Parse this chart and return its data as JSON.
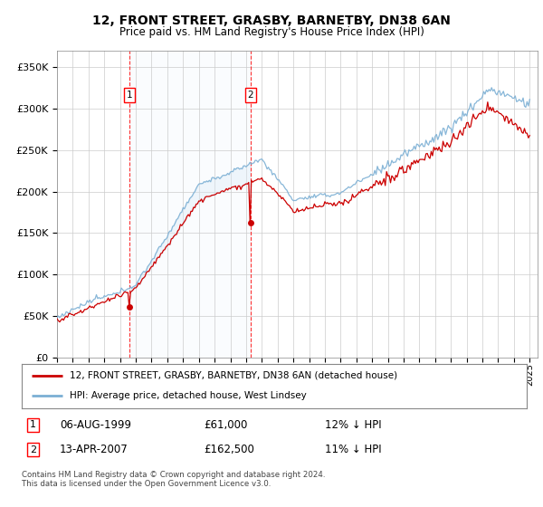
{
  "title": "12, FRONT STREET, GRASBY, BARNETBY, DN38 6AN",
  "subtitle": "Price paid vs. HM Land Registry's House Price Index (HPI)",
  "legend_line1": "12, FRONT STREET, GRASBY, BARNETBY, DN38 6AN (detached house)",
  "legend_line2": "HPI: Average price, detached house, West Lindsey",
  "footnote": "Contains HM Land Registry data © Crown copyright and database right 2024.\nThis data is licensed under the Open Government Licence v3.0.",
  "sale1_date_num": 1999.6,
  "sale1_price": 61000,
  "sale1_table": "06-AUG-1999",
  "sale1_amount": "£61,000",
  "sale1_hpi": "12% ↓ HPI",
  "sale2_date_num": 2007.28,
  "sale2_price": 162500,
  "sale2_table": "13-APR-2007",
  "sale2_amount": "£162,500",
  "sale2_hpi": "11% ↓ HPI",
  "ylim": [
    0,
    370000
  ],
  "yticks": [
    0,
    50000,
    100000,
    150000,
    200000,
    250000,
    300000,
    350000
  ],
  "xlim_start": 1995.0,
  "xlim_end": 2025.5,
  "hpi_color": "#7bafd4",
  "hpi_fill_color": "#daeaf7",
  "price_color": "#cc0000",
  "sale_color": "#cc0000",
  "plot_bg": "#ffffff",
  "grid_color": "#cccccc"
}
